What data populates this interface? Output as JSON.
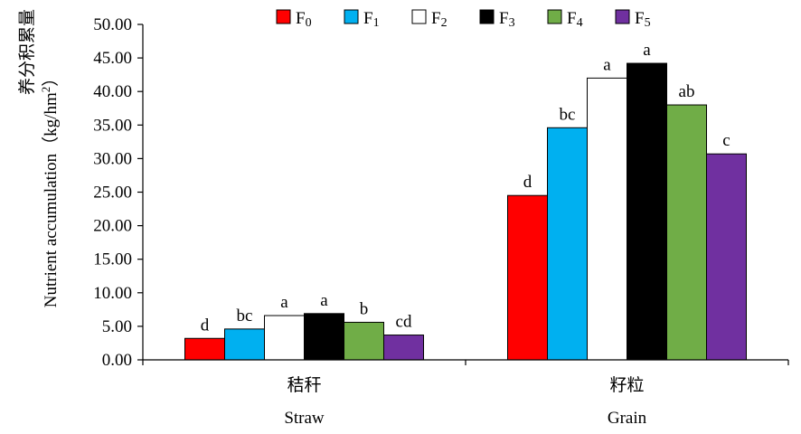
{
  "chart_data": {
    "type": "bar",
    "categories": [
      {
        "cn": "秸秆",
        "en": "Straw"
      },
      {
        "cn": "籽粒",
        "en": "Grain"
      }
    ],
    "ylabel_cn": "养分积累量",
    "ylabel_en": "Nutrient accumulation（kg/hm",
    "ylabel_sup": "2",
    "ylabel_close": "）",
    "ylim": [
      0,
      50
    ],
    "ytick_step": 5,
    "ytick_labels": [
      "0.00",
      "5.00",
      "10.00",
      "15.00",
      "20.00",
      "25.00",
      "30.00",
      "35.00",
      "40.00",
      "45.00",
      "50.00"
    ],
    "legend_position": "top",
    "series": [
      {
        "name": "F",
        "sub": "0",
        "color": "#ff0000",
        "values": [
          3.2,
          24.5
        ],
        "labels": [
          "d",
          "d"
        ]
      },
      {
        "name": "F",
        "sub": "1",
        "color": "#00b0f0",
        "values": [
          4.6,
          34.6
        ],
        "labels": [
          "bc",
          "bc"
        ]
      },
      {
        "name": "F",
        "sub": "2",
        "color": "#ffffff",
        "values": [
          6.6,
          42.0
        ],
        "labels": [
          "a",
          "a"
        ]
      },
      {
        "name": "F",
        "sub": "3",
        "color": "#000000",
        "values": [
          6.9,
          44.2
        ],
        "labels": [
          "a",
          "a"
        ]
      },
      {
        "name": "F",
        "sub": "4",
        "color": "#70ad47",
        "values": [
          5.6,
          38.0
        ],
        "labels": [
          "b",
          "ab"
        ]
      },
      {
        "name": "F",
        "sub": "5",
        "color": "#7030a0",
        "values": [
          3.7,
          30.7
        ],
        "labels": [
          "cd",
          "c"
        ]
      }
    ]
  }
}
